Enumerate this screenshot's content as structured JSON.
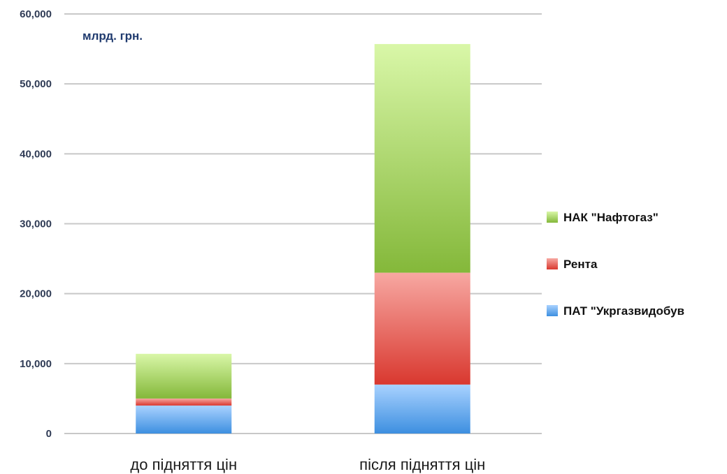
{
  "chart_data": {
    "type": "bar",
    "stacked": true,
    "unit_label": "млрд. грн.",
    "categories": [
      "до підняття цін",
      "після підняття цін"
    ],
    "y_ticks": [
      "0",
      "10,000",
      "20,000",
      "30,000",
      "40,000",
      "50,000",
      "60,000"
    ],
    "ylim": [
      0,
      60000
    ],
    "grid": true,
    "legend_position": "right",
    "series": [
      {
        "name": "ПАТ \"Укргазвидобув",
        "values": [
          4000,
          7000
        ],
        "color_top": "#a9d2ff",
        "color_bottom": "#3d8fe0"
      },
      {
        "name": "Рента",
        "values": [
          1000,
          16000
        ],
        "color_top": "#f7a8a2",
        "color_bottom": "#d9382f"
      },
      {
        "name": "НАК \"Нафтогаз\"",
        "values": [
          6400,
          32700
        ],
        "color_top": "#d9f7a8",
        "color_bottom": "#84b83a"
      }
    ]
  }
}
